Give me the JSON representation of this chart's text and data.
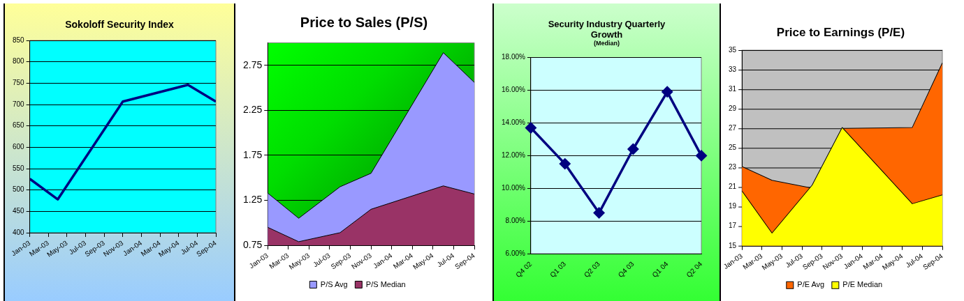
{
  "chart_data": [
    {
      "type": "line",
      "title": "Sokoloff Security Index",
      "x": [
        "2003-01",
        "2003-04",
        "2003-11",
        "2004-06",
        "2004-09"
      ],
      "series": [
        {
          "color": "#000080",
          "values": [
            526,
            478,
            707,
            746,
            707
          ]
        }
      ],
      "xlim": [
        "2003-01",
        "2004-09"
      ],
      "xticks": [
        {
          "value": "2003-01",
          "label": "Jan-03"
        },
        {
          "value": "2003-03",
          "label": "Mar-03"
        },
        {
          "value": "2003-05",
          "label": "May-03"
        },
        {
          "value": "2003-07",
          "label": "Jul-03"
        },
        {
          "value": "2003-09",
          "label": "Sep-03"
        },
        {
          "value": "2003-11",
          "label": "Nov-03"
        },
        {
          "value": "2004-01",
          "label": "Jan-04"
        },
        {
          "value": "2004-03",
          "label": "Mar-04"
        },
        {
          "value": "2004-05",
          "label": "May-04"
        },
        {
          "value": "2004-07",
          "label": "Jul-04"
        },
        {
          "value": "2004-09",
          "label": "Sep-04"
        }
      ],
      "ylim": [
        400,
        850
      ],
      "yticks": [
        400,
        450,
        500,
        550,
        600,
        650,
        700,
        750,
        800,
        850
      ],
      "grid": "y"
    },
    {
      "type": "area",
      "title": "Price to Sales (P/S)",
      "x": [
        "2003-01",
        "2003-04",
        "2003-08",
        "2003-11",
        "2004-06",
        "2004-09"
      ],
      "series": [
        {
          "name": "P/S Avg",
          "color": "#9999ff",
          "values": [
            1.33,
            1.05,
            1.4,
            1.55,
            2.89,
            2.56
          ]
        },
        {
          "name": "P/S Median",
          "color": "#993366",
          "values": [
            0.95,
            0.79,
            0.89,
            1.15,
            1.41,
            1.32
          ]
        }
      ],
      "xlim": [
        "2003-01",
        "2004-09"
      ],
      "xticks": [
        {
          "value": "2003-01",
          "label": "Jan-03"
        },
        {
          "value": "2003-03",
          "label": "Mar-03"
        },
        {
          "value": "2003-05",
          "label": "May-03"
        },
        {
          "value": "2003-07",
          "label": "Jul-03"
        },
        {
          "value": "2003-09",
          "label": "Sep-03"
        },
        {
          "value": "2003-11",
          "label": "Nov-03"
        },
        {
          "value": "2004-01",
          "label": "Jan-04"
        },
        {
          "value": "2004-03",
          "label": "Mar-04"
        },
        {
          "value": "2004-05",
          "label": "May-04"
        },
        {
          "value": "2004-07",
          "label": "Jul-04"
        },
        {
          "value": "2004-09",
          "label": "Sep-04"
        }
      ],
      "ylim": [
        0.75,
        3.0
      ],
      "yticks": [
        0.75,
        1.25,
        1.75,
        2.25,
        2.75
      ],
      "grid": "y",
      "legend": "bottom"
    },
    {
      "type": "line",
      "title": "Security Industry Quarterly Growth",
      "subtitle": "(Median)",
      "categories": [
        "Q4 02",
        "Q1 03",
        "Q2 03",
        "Q4 03",
        "Q1 04",
        "Q2 04"
      ],
      "series": [
        {
          "color": "#000080",
          "values": [
            13.7,
            11.5,
            8.5,
            12.4,
            15.9,
            12.0
          ]
        }
      ],
      "ylim": [
        6,
        18
      ],
      "yticks": [
        {
          "value": 6,
          "label": "6.00%"
        },
        {
          "value": 8,
          "label": "8.00%"
        },
        {
          "value": 10,
          "label": "10.00%"
        },
        {
          "value": 12,
          "label": "12.00%"
        },
        {
          "value": 14,
          "label": "14.00%"
        },
        {
          "value": 16,
          "label": "16.00%"
        },
        {
          "value": 18,
          "label": "18.00%"
        }
      ],
      "grid": "y",
      "marker": "diamond"
    },
    {
      "type": "area",
      "title": "Price to Earnings (P/E)",
      "x": [
        "2003-01",
        "2003-04",
        "2003-08",
        "2003-11",
        "2004-06",
        "2004-09"
      ],
      "series": [
        {
          "name": "P/E Avg",
          "color": "#ff6600",
          "values": [
            23.1,
            21.7,
            20.9,
            27.0,
            27.1,
            33.7
          ]
        },
        {
          "name": "P/E Median",
          "color": "#ffff00",
          "values": [
            20.6,
            16.3,
            21.2,
            27.1,
            19.3,
            20.2
          ]
        }
      ],
      "xlim": [
        "2003-01",
        "2004-09"
      ],
      "xticks": [
        {
          "value": "2003-01",
          "label": "Jan-03"
        },
        {
          "value": "2003-03",
          "label": "Mar-03"
        },
        {
          "value": "2003-05",
          "label": "May-03"
        },
        {
          "value": "2003-07",
          "label": "Jul-03"
        },
        {
          "value": "2003-09",
          "label": "Sep-03"
        },
        {
          "value": "2003-11",
          "label": "Nov-03"
        },
        {
          "value": "2004-01",
          "label": "Jan-04"
        },
        {
          "value": "2004-03",
          "label": "Mar-04"
        },
        {
          "value": "2004-05",
          "label": "May-04"
        },
        {
          "value": "2004-07",
          "label": "Jul-04"
        },
        {
          "value": "2004-09",
          "label": "Sep-04"
        }
      ],
      "ylim": [
        15,
        35
      ],
      "yticks": [
        15,
        17,
        19,
        21,
        23,
        25,
        27,
        29,
        31,
        33,
        35
      ],
      "grid": "y",
      "legend": "bottom"
    }
  ]
}
